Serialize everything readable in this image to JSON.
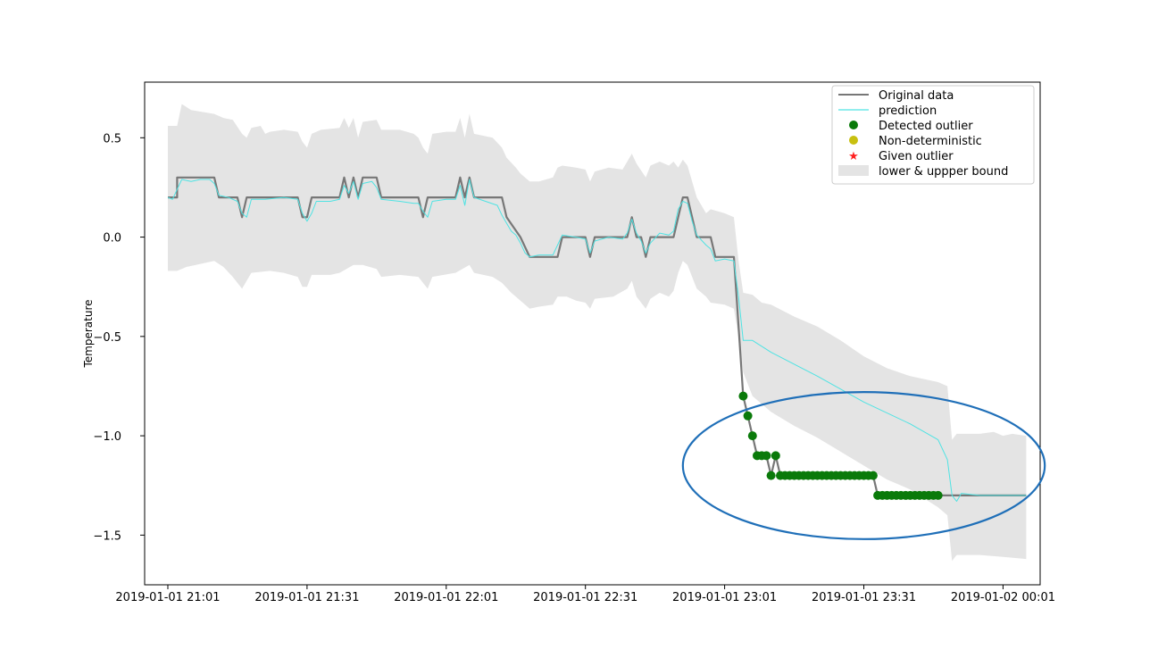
{
  "chart_data": {
    "type": "line",
    "title": "",
    "xlabel": "",
    "ylabel": "Temperature",
    "ylim": [
      -1.75,
      0.78
    ],
    "yticks": [
      0.5,
      0.0,
      -0.5,
      -1.0,
      -1.5
    ],
    "ytick_labels": [
      "0.5",
      "0.0",
      "−0.5",
      "−1.0",
      "−1.5"
    ],
    "xlim": [
      -5,
      188
    ],
    "xticks": [
      0,
      30,
      60,
      90,
      120,
      150,
      180
    ],
    "xtick_labels": [
      "2019-01-01 21:01",
      "2019-01-01 21:31",
      "2019-01-01 22:01",
      "2019-01-01 22:31",
      "2019-01-01 23:01",
      "2019-01-01 23:31",
      "2019-01-02 00:01"
    ],
    "grid": false,
    "legend_position": "upper right",
    "colors": {
      "original": "#777777",
      "prediction": "#4fe3e3",
      "detected": "#0a7a0a",
      "nondeterministic": "#c8c010",
      "given": "#ff2020",
      "bound": "#e4e4e4",
      "ellipse": "#1f6fb8"
    },
    "legend": [
      {
        "label": "Original data",
        "kind": "line",
        "color": "#777777"
      },
      {
        "label": "prediction",
        "kind": "line",
        "color": "#4fe3e3"
      },
      {
        "label": "Detected outlier",
        "kind": "dot",
        "color": "#0a7a0a"
      },
      {
        "label": "Non-deterministic",
        "kind": "dot",
        "color": "#c8c010"
      },
      {
        "label": "Given outlier",
        "kind": "star",
        "color": "#ff2020"
      },
      {
        "label": "lower & uppper bound",
        "kind": "patch",
        "color": "#e4e4e4"
      }
    ],
    "original": {
      "name": "Original data",
      "points": [
        [
          0,
          0.2
        ],
        [
          2,
          0.2
        ],
        [
          2,
          0.3
        ],
        [
          10,
          0.3
        ],
        [
          11,
          0.2
        ],
        [
          15,
          0.2
        ],
        [
          16,
          0.1
        ],
        [
          17,
          0.2
        ],
        [
          28,
          0.2
        ],
        [
          29,
          0.1
        ],
        [
          30,
          0.1
        ],
        [
          31,
          0.2
        ],
        [
          37,
          0.2
        ],
        [
          38,
          0.3
        ],
        [
          39,
          0.2
        ],
        [
          40,
          0.3
        ],
        [
          41,
          0.2
        ],
        [
          42,
          0.3
        ],
        [
          45,
          0.3
        ],
        [
          46,
          0.2
        ],
        [
          54,
          0.2
        ],
        [
          55,
          0.1
        ],
        [
          56,
          0.2
        ],
        [
          62,
          0.2
        ],
        [
          63,
          0.3
        ],
        [
          64,
          0.2
        ],
        [
          65,
          0.3
        ],
        [
          66,
          0.2
        ],
        [
          72,
          0.2
        ],
        [
          73,
          0.1
        ],
        [
          76,
          0.0
        ],
        [
          78,
          -0.1
        ],
        [
          84,
          -0.1
        ],
        [
          85,
          0.0
        ],
        [
          90,
          0.0
        ],
        [
          91,
          -0.1
        ],
        [
          92,
          0.0
        ],
        [
          99,
          0.0
        ],
        [
          100,
          0.1
        ],
        [
          101,
          0.0
        ],
        [
          102,
          0.0
        ],
        [
          103,
          -0.1
        ],
        [
          104,
          0.0
        ],
        [
          109,
          0.0
        ],
        [
          111,
          0.2
        ],
        [
          112,
          0.2
        ],
        [
          114,
          0.0
        ],
        [
          117,
          0.0
        ],
        [
          118,
          -0.1
        ],
        [
          122,
          -0.1
        ],
        [
          124,
          -0.8
        ],
        [
          125,
          -0.9
        ],
        [
          126,
          -1.0
        ],
        [
          127,
          -1.1
        ],
        [
          129,
          -1.1
        ],
        [
          130,
          -1.2
        ],
        [
          131,
          -1.1
        ],
        [
          132,
          -1.2
        ],
        [
          152,
          -1.2
        ],
        [
          153,
          -1.3
        ],
        [
          185,
          -1.3
        ]
      ]
    },
    "prediction": {
      "name": "prediction",
      "points": [
        [
          0,
          0.2
        ],
        [
          1,
          0.19
        ],
        [
          2,
          0.24
        ],
        [
          3,
          0.29
        ],
        [
          5,
          0.28
        ],
        [
          7,
          0.29
        ],
        [
          9,
          0.29
        ],
        [
          10,
          0.27
        ],
        [
          11,
          0.21
        ],
        [
          13,
          0.2
        ],
        [
          15,
          0.18
        ],
        [
          16,
          0.12
        ],
        [
          17,
          0.1
        ],
        [
          18,
          0.19
        ],
        [
          21,
          0.19
        ],
        [
          25,
          0.2
        ],
        [
          28,
          0.19
        ],
        [
          29,
          0.12
        ],
        [
          30,
          0.08
        ],
        [
          31,
          0.12
        ],
        [
          32,
          0.18
        ],
        [
          35,
          0.18
        ],
        [
          37,
          0.19
        ],
        [
          38,
          0.26
        ],
        [
          39,
          0.22
        ],
        [
          40,
          0.28
        ],
        [
          41,
          0.19
        ],
        [
          42,
          0.27
        ],
        [
          44,
          0.28
        ],
        [
          45,
          0.25
        ],
        [
          46,
          0.19
        ],
        [
          50,
          0.18
        ],
        [
          53,
          0.17
        ],
        [
          54,
          0.17
        ],
        [
          55,
          0.13
        ],
        [
          56,
          0.1
        ],
        [
          57,
          0.18
        ],
        [
          60,
          0.19
        ],
        [
          62,
          0.19
        ],
        [
          63,
          0.26
        ],
        [
          64,
          0.16
        ],
        [
          65,
          0.29
        ],
        [
          66,
          0.2
        ],
        [
          71,
          0.16
        ],
        [
          72,
          0.11
        ],
        [
          73,
          0.07
        ],
        [
          74,
          0.03
        ],
        [
          75,
          0.01
        ],
        [
          76,
          -0.03
        ],
        [
          77,
          -0.08
        ],
        [
          78,
          -0.1
        ],
        [
          80,
          -0.09
        ],
        [
          83,
          -0.09
        ],
        [
          84,
          -0.04
        ],
        [
          85,
          0.01
        ],
        [
          88,
          0.0
        ],
        [
          90,
          -0.01
        ],
        [
          91,
          -0.08
        ],
        [
          92,
          -0.02
        ],
        [
          95,
          0.0
        ],
        [
          98,
          -0.01
        ],
        [
          99,
          0.02
        ],
        [
          100,
          0.09
        ],
        [
          101,
          0.02
        ],
        [
          102,
          -0.02
        ],
        [
          103,
          -0.08
        ],
        [
          104,
          -0.03
        ],
        [
          106,
          0.02
        ],
        [
          108,
          0.01
        ],
        [
          109,
          0.03
        ],
        [
          110,
          0.14
        ],
        [
          111,
          0.18
        ],
        [
          112,
          0.17
        ],
        [
          113,
          0.08
        ],
        [
          114,
          0.01
        ],
        [
          116,
          -0.04
        ],
        [
          117,
          -0.06
        ],
        [
          118,
          -0.12
        ],
        [
          120,
          -0.11
        ],
        [
          122,
          -0.12
        ],
        [
          123,
          -0.3
        ],
        [
          124,
          -0.52
        ],
        [
          126,
          -0.52
        ],
        [
          130,
          -0.58
        ],
        [
          140,
          -0.7
        ],
        [
          150,
          -0.83
        ],
        [
          160,
          -0.94
        ],
        [
          166,
          -1.02
        ],
        [
          168,
          -1.12
        ],
        [
          169,
          -1.3
        ],
        [
          170,
          -1.33
        ],
        [
          171,
          -1.29
        ],
        [
          175,
          -1.3
        ],
        [
          185,
          -1.3
        ]
      ]
    },
    "bound_upper": [
      [
        0,
        0.56
      ],
      [
        2,
        0.56
      ],
      [
        3,
        0.67
      ],
      [
        5,
        0.64
      ],
      [
        10,
        0.62
      ],
      [
        12,
        0.6
      ],
      [
        14,
        0.59
      ],
      [
        16,
        0.52
      ],
      [
        17,
        0.5
      ],
      [
        18,
        0.55
      ],
      [
        20,
        0.56
      ],
      [
        21,
        0.52
      ],
      [
        22,
        0.53
      ],
      [
        25,
        0.54
      ],
      [
        28,
        0.53
      ],
      [
        29,
        0.48
      ],
      [
        30,
        0.45
      ],
      [
        31,
        0.52
      ],
      [
        33,
        0.54
      ],
      [
        37,
        0.55
      ],
      [
        38,
        0.6
      ],
      [
        39,
        0.55
      ],
      [
        40,
        0.6
      ],
      [
        41,
        0.5
      ],
      [
        42,
        0.58
      ],
      [
        45,
        0.59
      ],
      [
        46,
        0.54
      ],
      [
        50,
        0.54
      ],
      [
        53,
        0.52
      ],
      [
        54,
        0.5
      ],
      [
        55,
        0.45
      ],
      [
        56,
        0.42
      ],
      [
        57,
        0.52
      ],
      [
        60,
        0.53
      ],
      [
        62,
        0.53
      ],
      [
        63,
        0.6
      ],
      [
        64,
        0.5
      ],
      [
        65,
        0.62
      ],
      [
        66,
        0.52
      ],
      [
        70,
        0.5
      ],
      [
        72,
        0.45
      ],
      [
        73,
        0.4
      ],
      [
        75,
        0.35
      ],
      [
        76,
        0.32
      ],
      [
        78,
        0.28
      ],
      [
        80,
        0.28
      ],
      [
        83,
        0.3
      ],
      [
        84,
        0.35
      ],
      [
        85,
        0.36
      ],
      [
        88,
        0.35
      ],
      [
        90,
        0.34
      ],
      [
        91,
        0.28
      ],
      [
        92,
        0.33
      ],
      [
        95,
        0.35
      ],
      [
        98,
        0.34
      ],
      [
        99,
        0.38
      ],
      [
        100,
        0.42
      ],
      [
        101,
        0.37
      ],
      [
        103,
        0.3
      ],
      [
        104,
        0.36
      ],
      [
        106,
        0.38
      ],
      [
        108,
        0.36
      ],
      [
        109,
        0.38
      ],
      [
        110,
        0.35
      ],
      [
        111,
        0.39
      ],
      [
        112,
        0.36
      ],
      [
        113,
        0.28
      ],
      [
        114,
        0.2
      ],
      [
        116,
        0.12
      ],
      [
        117,
        0.14
      ],
      [
        120,
        0.12
      ],
      [
        122,
        0.1
      ],
      [
        123,
        -0.12
      ],
      [
        124,
        -0.28
      ],
      [
        126,
        -0.29
      ],
      [
        128,
        -0.33
      ],
      [
        130,
        -0.34
      ],
      [
        135,
        -0.4
      ],
      [
        140,
        -0.45
      ],
      [
        145,
        -0.52
      ],
      [
        150,
        -0.6
      ],
      [
        155,
        -0.66
      ],
      [
        160,
        -0.7
      ],
      [
        166,
        -0.73
      ],
      [
        168,
        -0.75
      ],
      [
        169,
        -1.02
      ],
      [
        170,
        -0.99
      ],
      [
        175,
        -0.99
      ],
      [
        178,
        -0.98
      ],
      [
        180,
        -1.0
      ],
      [
        182,
        -0.99
      ],
      [
        185,
        -1.0
      ]
    ],
    "bound_lower": [
      [
        0,
        -0.17
      ],
      [
        2,
        -0.17
      ],
      [
        4,
        -0.15
      ],
      [
        10,
        -0.12
      ],
      [
        12,
        -0.15
      ],
      [
        14,
        -0.2
      ],
      [
        16,
        -0.26
      ],
      [
        17,
        -0.22
      ],
      [
        18,
        -0.18
      ],
      [
        22,
        -0.17
      ],
      [
        25,
        -0.18
      ],
      [
        28,
        -0.2
      ],
      [
        29,
        -0.25
      ],
      [
        30,
        -0.25
      ],
      [
        31,
        -0.19
      ],
      [
        35,
        -0.19
      ],
      [
        37,
        -0.18
      ],
      [
        40,
        -0.14
      ],
      [
        42,
        -0.14
      ],
      [
        45,
        -0.16
      ],
      [
        46,
        -0.2
      ],
      [
        50,
        -0.19
      ],
      [
        54,
        -0.2
      ],
      [
        55,
        -0.23
      ],
      [
        56,
        -0.26
      ],
      [
        57,
        -0.2
      ],
      [
        62,
        -0.18
      ],
      [
        65,
        -0.14
      ],
      [
        66,
        -0.18
      ],
      [
        70,
        -0.2
      ],
      [
        72,
        -0.23
      ],
      [
        74,
        -0.28
      ],
      [
        76,
        -0.32
      ],
      [
        78,
        -0.36
      ],
      [
        80,
        -0.35
      ],
      [
        83,
        -0.34
      ],
      [
        84,
        -0.3
      ],
      [
        86,
        -0.3
      ],
      [
        88,
        -0.32
      ],
      [
        90,
        -0.33
      ],
      [
        91,
        -0.36
      ],
      [
        92,
        -0.31
      ],
      [
        96,
        -0.3
      ],
      [
        99,
        -0.26
      ],
      [
        100,
        -0.22
      ],
      [
        101,
        -0.3
      ],
      [
        103,
        -0.36
      ],
      [
        104,
        -0.31
      ],
      [
        106,
        -0.28
      ],
      [
        108,
        -0.3
      ],
      [
        109,
        -0.27
      ],
      [
        110,
        -0.18
      ],
      [
        111,
        -0.12
      ],
      [
        112,
        -0.14
      ],
      [
        113,
        -0.2
      ],
      [
        114,
        -0.26
      ],
      [
        116,
        -0.3
      ],
      [
        117,
        -0.33
      ],
      [
        120,
        -0.34
      ],
      [
        122,
        -0.36
      ],
      [
        123,
        -0.5
      ],
      [
        124,
        -0.68
      ],
      [
        126,
        -0.8
      ],
      [
        128,
        -0.84
      ],
      [
        130,
        -0.88
      ],
      [
        135,
        -0.95
      ],
      [
        140,
        -1.01
      ],
      [
        145,
        -1.08
      ],
      [
        150,
        -1.15
      ],
      [
        155,
        -1.22
      ],
      [
        160,
        -1.27
      ],
      [
        166,
        -1.36
      ],
      [
        168,
        -1.4
      ],
      [
        169,
        -1.63
      ],
      [
        170,
        -1.6
      ],
      [
        175,
        -1.6
      ],
      [
        180,
        -1.61
      ],
      [
        185,
        -1.62
      ]
    ],
    "detected_outliers": {
      "name": "Detected outlier",
      "points": [
        [
          124,
          -0.8
        ],
        [
          125,
          -0.9
        ],
        [
          126,
          -1.0
        ],
        [
          127,
          -1.1
        ],
        [
          128,
          -1.1
        ],
        [
          129,
          -1.1
        ],
        [
          130,
          -1.2
        ],
        [
          131,
          -1.1
        ],
        [
          132,
          -1.2
        ],
        [
          133,
          -1.2
        ],
        [
          134,
          -1.2
        ],
        [
          135,
          -1.2
        ],
        [
          136,
          -1.2
        ],
        [
          137,
          -1.2
        ],
        [
          138,
          -1.2
        ],
        [
          139,
          -1.2
        ],
        [
          140,
          -1.2
        ],
        [
          141,
          -1.2
        ],
        [
          142,
          -1.2
        ],
        [
          143,
          -1.2
        ],
        [
          144,
          -1.2
        ],
        [
          145,
          -1.2
        ],
        [
          146,
          -1.2
        ],
        [
          147,
          -1.2
        ],
        [
          148,
          -1.2
        ],
        [
          149,
          -1.2
        ],
        [
          150,
          -1.2
        ],
        [
          151,
          -1.2
        ],
        [
          152,
          -1.2
        ],
        [
          153,
          -1.3
        ],
        [
          154,
          -1.3
        ],
        [
          155,
          -1.3
        ],
        [
          156,
          -1.3
        ],
        [
          157,
          -1.3
        ],
        [
          158,
          -1.3
        ],
        [
          159,
          -1.3
        ],
        [
          160,
          -1.3
        ],
        [
          161,
          -1.3
        ],
        [
          162,
          -1.3
        ],
        [
          163,
          -1.3
        ],
        [
          164,
          -1.3
        ],
        [
          165,
          -1.3
        ],
        [
          166,
          -1.3
        ]
      ]
    },
    "highlight_ellipse": {
      "cx": 150,
      "cy": -1.15,
      "rx": 39,
      "ry": 0.37
    }
  }
}
